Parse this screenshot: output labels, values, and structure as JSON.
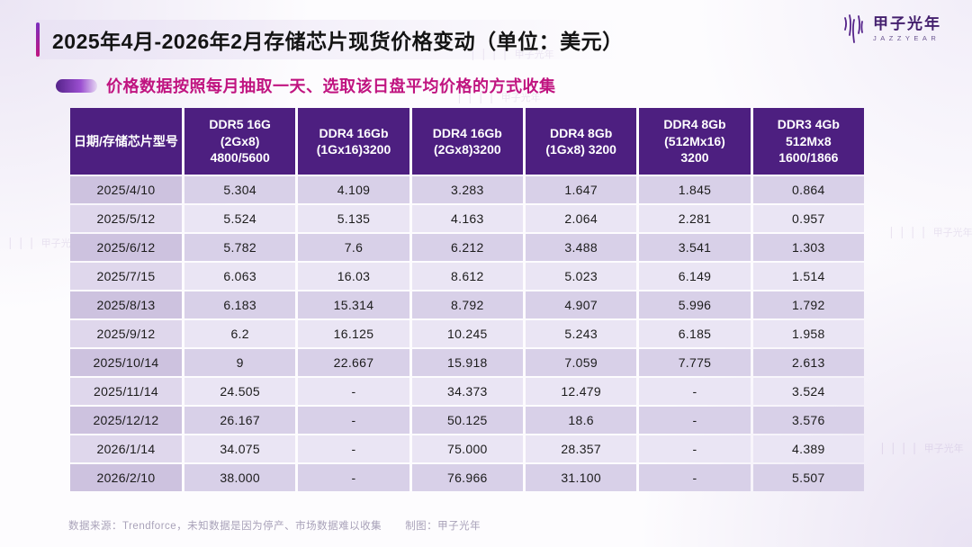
{
  "page": {
    "title": "2025年4月-2026年2月存储芯片现货价格变动（单位：美元）",
    "subtitle": "价格数据按照每月抽取一天、选取该日盘平均价格的方式收集",
    "footer": {
      "source": "数据来源：Trendforce，未知数据是因为停产、市场数据难以收集",
      "credit": "制图：甲子光年"
    },
    "logo": {
      "name": "甲子光年",
      "sub": "JAZZYEAR"
    },
    "watermark_text": "甲子光年"
  },
  "colors": {
    "header_bg": "#4D1F80",
    "accent_purple": "#7B2FBE",
    "accent_magenta": "#C01480",
    "row_odd": "#D8D0E8",
    "row_even": "#EAE5F4",
    "date_odd": "#CDC2DF",
    "date_even": "#DFD7EC"
  },
  "chart_data": {
    "type": "table",
    "title": "2025年4月-2026年2月存储芯片现货价格变动（单位：美元）",
    "note": "价格数据按照每月抽取一天、选取该日盘平均价格的方式收集",
    "unit": "美元",
    "columns": [
      "日期/存储芯片型号",
      "DDR5 16G\n(2Gx8)\n4800/5600",
      "DDR4 16Gb\n(1Gx16)3200",
      "DDR4 16Gb\n(2Gx8)3200",
      "DDR4 8Gb\n(1Gx8) 3200",
      "DDR4 8Gb\n(512Mx16)\n3200",
      "DDR3 4Gb\n512Mx8\n1600/1866"
    ],
    "rows": [
      [
        "2025/4/10",
        "5.304",
        "4.109",
        "3.283",
        "1.647",
        "1.845",
        "0.864"
      ],
      [
        "2025/5/12",
        "5.524",
        "5.135",
        "4.163",
        "2.064",
        "2.281",
        "0.957"
      ],
      [
        "2025/6/12",
        "5.782",
        "7.6",
        "6.212",
        "3.488",
        "3.541",
        "1.303"
      ],
      [
        "2025/7/15",
        "6.063",
        "16.03",
        "8.612",
        "5.023",
        "6.149",
        "1.514"
      ],
      [
        "2025/8/13",
        "6.183",
        "15.314",
        "8.792",
        "4.907",
        "5.996",
        "1.792"
      ],
      [
        "2025/9/12",
        "6.2",
        "16.125",
        "10.245",
        "5.243",
        "6.185",
        "1.958"
      ],
      [
        "2025/10/14",
        "9",
        "22.667",
        "15.918",
        "7.059",
        "7.775",
        "2.613"
      ],
      [
        "2025/11/14",
        "24.505",
        "-",
        "34.373",
        "12.479",
        "-",
        "3.524"
      ],
      [
        "2025/12/12",
        "26.167",
        "-",
        "50.125",
        "18.6",
        "-",
        "3.576"
      ],
      [
        "2026/1/14",
        "34.075",
        "-",
        "75.000",
        "28.357",
        "-",
        "4.389"
      ],
      [
        "2026/2/10",
        "38.000",
        "-",
        "76.966",
        "31.100",
        "-",
        "5.507"
      ]
    ]
  }
}
